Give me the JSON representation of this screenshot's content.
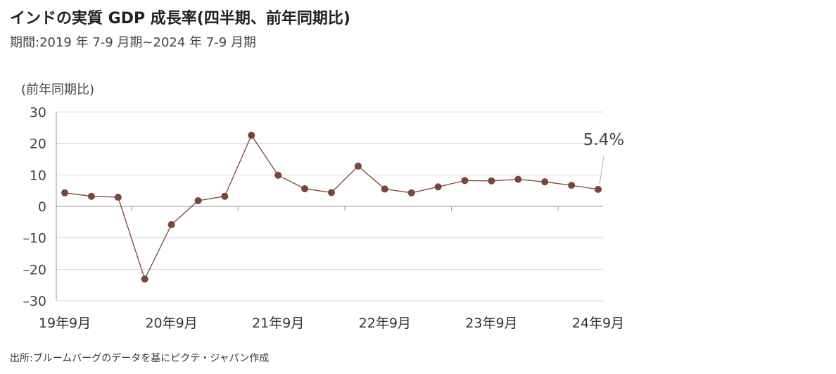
{
  "title": "インドの実質 GDP 成長率(四半期、前年同期比)",
  "subtitle": "期間:2019 年 7-9 月期~2024 年 7-9 月期",
  "source": "出所:ブルームバーグのデータを基にピクテ・ジャパン作成",
  "colors": {
    "line": "#7b4537",
    "marker": "#7b4537",
    "grid": "#d9d9d9",
    "axis": "#9a9a9a"
  },
  "chart_data": {
    "type": "line",
    "ylabel": "(前年同期比)",
    "ylim": [
      -30,
      30
    ],
    "yticks": [
      "30",
      "20",
      "10",
      "0",
      "–10",
      "–20",
      "–30"
    ],
    "ytick_values": [
      30,
      20,
      10,
      0,
      -10,
      -20,
      -30
    ],
    "x": [
      "2019-09",
      "2019-12",
      "2020-03",
      "2020-06",
      "2020-09",
      "2020-12",
      "2021-03",
      "2021-06",
      "2021-09",
      "2021-12",
      "2022-03",
      "2022-06",
      "2022-09",
      "2022-12",
      "2023-03",
      "2023-06",
      "2023-09",
      "2023-12",
      "2024-03",
      "2024-06",
      "2024-09"
    ],
    "xtick_labels": [
      {
        "index": 0,
        "label": "19年9月"
      },
      {
        "index": 4,
        "label": "20年9月"
      },
      {
        "index": 8,
        "label": "21年9月"
      },
      {
        "index": 12,
        "label": "22年9月"
      },
      {
        "index": 16,
        "label": "23年9月"
      },
      {
        "index": 20,
        "label": "24年9月"
      }
    ],
    "series": [
      {
        "values": [
          4.3,
          3.2,
          2.9,
          -23.1,
          -5.8,
          1.8,
          3.2,
          22.6,
          9.9,
          5.6,
          4.4,
          12.8,
          5.5,
          4.3,
          6.2,
          8.2,
          8.1,
          8.6,
          7.8,
          6.7,
          5.4
        ]
      }
    ],
    "annotation": {
      "index": 20,
      "text": "5.4%"
    },
    "grid": true,
    "legend": "none"
  }
}
